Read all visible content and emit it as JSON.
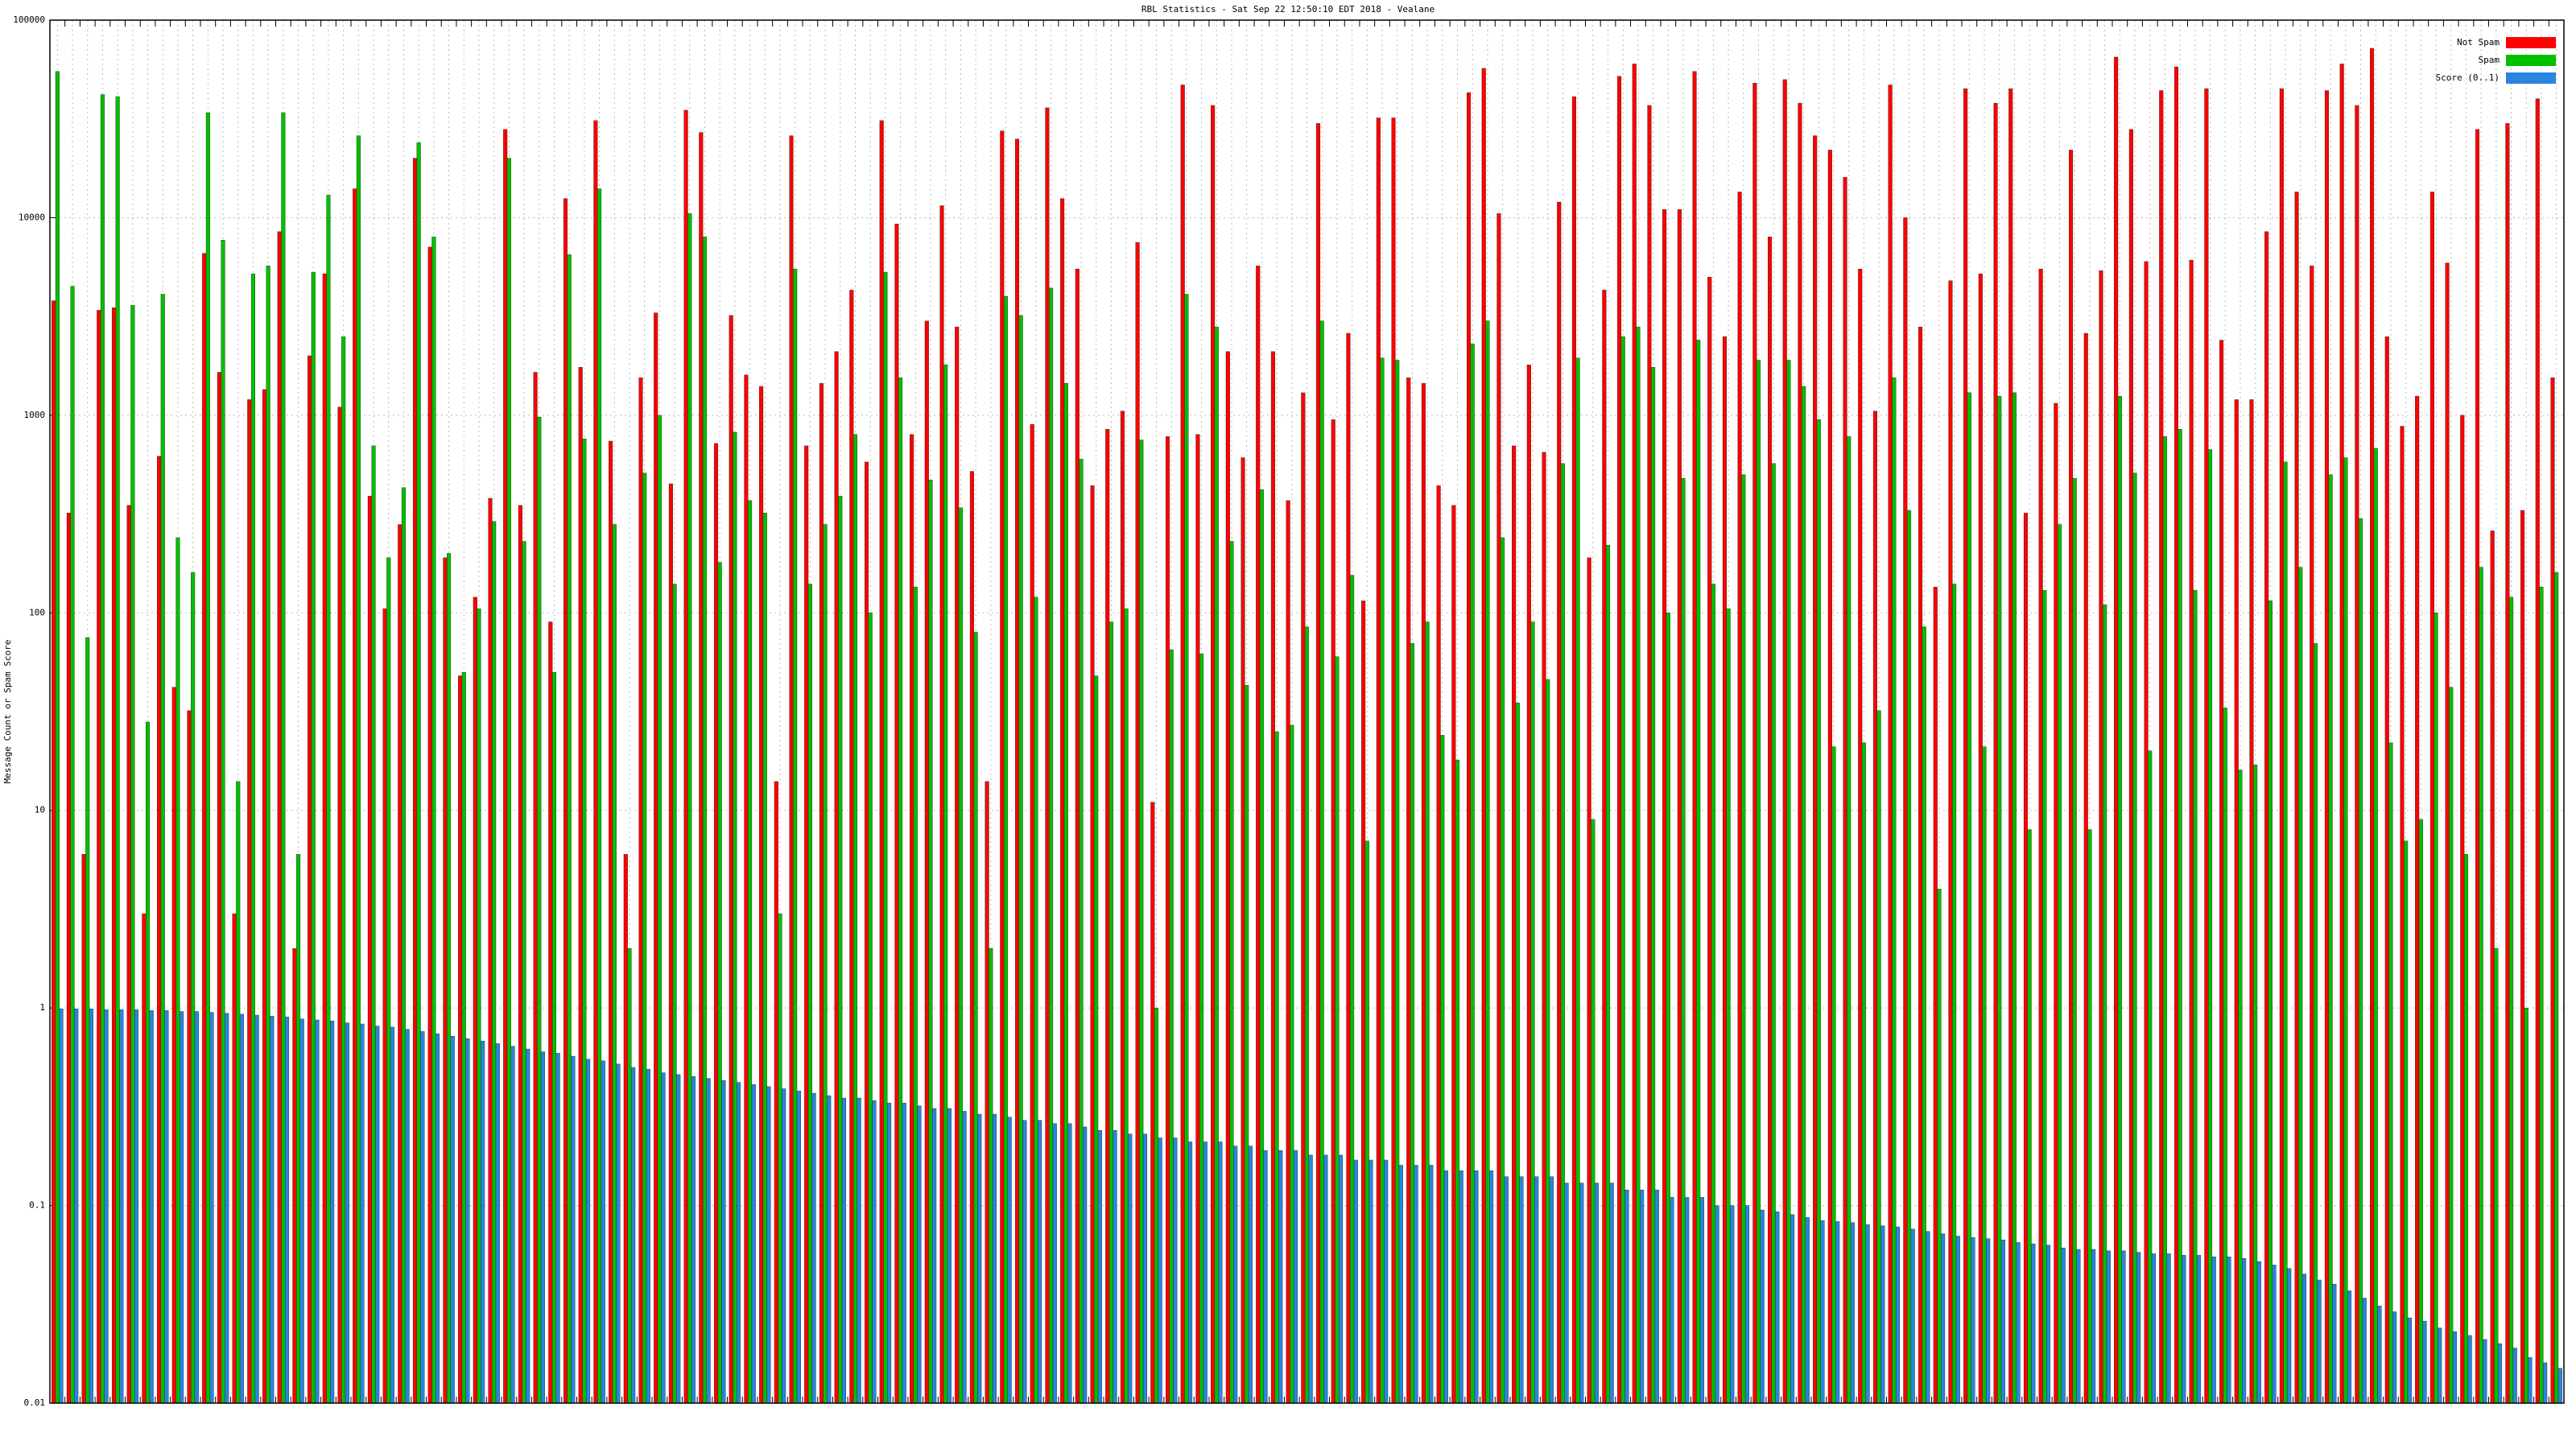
{
  "chart_data": {
    "type": "bar",
    "title": "RBL Statistics - Sat Sep 22 12:50:10 EDT 2018 - Vealane",
    "y_label": "Message Count or Spam Score",
    "log_scale": true,
    "grid": true,
    "legend": "upper-right",
    "ylim": [
      0.01,
      100000
    ],
    "yticks": [
      0.01,
      0.1,
      1,
      10,
      100,
      1000,
      10000,
      100000
    ],
    "series": [
      {
        "name": "Not Spam",
        "color": "#ff0000",
        "values": [
          3800,
          320,
          6,
          3400,
          3500,
          350,
          3,
          620,
          42,
          32,
          6600,
          1650,
          3,
          1200,
          1350,
          8500,
          2,
          2000,
          5200,
          1100,
          14000,
          390,
          105,
          280,
          20000,
          7100,
          190,
          48,
          120,
          380,
          28000,
          350,
          1650,
          90,
          12500,
          1750,
          31000,
          740,
          6,
          1550,
          3300,
          450,
          35000,
          27000,
          720,
          3200,
          1600,
          1400,
          14,
          26000,
          700,
          1450,
          2100,
          4300,
          580,
          31000,
          9300,
          800,
          3000,
          11500,
          2800,
          520,
          14,
          27500,
          25000,
          900,
          36000,
          12500,
          5500,
          440,
          850,
          1050,
          7500,
          11,
          780,
          47000,
          800,
          37000,
          2100,
          610,
          5700,
          2100,
          370,
          1300,
          30000,
          950,
          2600,
          115,
          32000,
          32000,
          1550,
          1450,
          440,
          350,
          43000,
          57000,
          10500,
          700,
          1800,
          650,
          12000,
          41000,
          190,
          4300,
          52000,
          60000,
          37000,
          11000,
          11000,
          55000,
          5000,
          2500,
          13500,
          48000,
          8000,
          50000,
          38000,
          26000,
          22000,
          16000,
          5500,
          1050,
          47000,
          10000,
          2800,
          135,
          4800,
          45000,
          5200,
          38000,
          45000,
          320,
          5500,
          1150,
          22000,
          2600,
          5400,
          65000,
          28000,
          6000,
          44000,
          58000,
          6100,
          45000,
          2400,
          1200,
          1200,
          8500,
          45000,
          13500,
          5700,
          44000,
          60000,
          37000,
          72000,
          2500,
          880,
          1250,
          13500,
          5900,
          1000,
          28000,
          260,
          30000,
          330,
          40000,
          1550
        ]
      },
      {
        "name": "Spam",
        "color": "#00c000",
        "values": [
          55000,
          4500,
          75,
          42000,
          41000,
          3600,
          28,
          4100,
          240,
          160,
          34000,
          7700,
          14,
          5200,
          5700,
          34000,
          6,
          5300,
          13000,
          2500,
          26000,
          700,
          190,
          430,
          24000,
          8000,
          200,
          50,
          105,
          290,
          20000,
          230,
          980,
          50,
          6500,
          760,
          14000,
          280,
          2,
          510,
          1000,
          140,
          10500,
          8000,
          180,
          820,
          370,
          320,
          3,
          5500,
          140,
          280,
          390,
          800,
          100,
          5300,
          1550,
          135,
          470,
          1800,
          340,
          80,
          2,
          4000,
          3200,
          120,
          4400,
          1450,
          600,
          48,
          90,
          105,
          750,
          1,
          65,
          4100,
          62,
          2800,
          230,
          43,
          420,
          25,
          27,
          85,
          3000,
          60,
          155,
          7,
          1950,
          1900,
          70,
          90,
          24,
          18,
          2300,
          3000,
          240,
          35,
          90,
          46,
          570,
          1950,
          9,
          220,
          2500,
          2800,
          1750,
          100,
          480,
          2400,
          140,
          105,
          500,
          1900,
          570,
          1900,
          1400,
          950,
          21,
          780,
          22,
          32,
          1550,
          330,
          85,
          4,
          140,
          1300,
          21,
          1250,
          1300,
          8,
          130,
          280,
          480,
          8,
          110,
          1250,
          510,
          20,
          780,
          850,
          130,
          670,
          33,
          16,
          17,
          115,
          580,
          170,
          70,
          500,
          610,
          300,
          680,
          22,
          7,
          9,
          100,
          42,
          6,
          170,
          2,
          120,
          1,
          135,
          160
        ]
      },
      {
        "name": "Score (0..1)",
        "color": "#2a84e0",
        "values": [
          0.99,
          0.99,
          0.99,
          0.98,
          0.98,
          0.98,
          0.97,
          0.97,
          0.96,
          0.96,
          0.95,
          0.94,
          0.93,
          0.92,
          0.91,
          0.9,
          0.88,
          0.87,
          0.86,
          0.84,
          0.83,
          0.81,
          0.8,
          0.78,
          0.76,
          0.74,
          0.72,
          0.7,
          0.68,
          0.66,
          0.64,
          0.62,
          0.6,
          0.59,
          0.57,
          0.55,
          0.54,
          0.52,
          0.5,
          0.49,
          0.47,
          0.46,
          0.45,
          0.44,
          0.43,
          0.42,
          0.41,
          0.4,
          0.39,
          0.38,
          0.37,
          0.36,
          0.35,
          0.35,
          0.34,
          0.33,
          0.33,
          0.32,
          0.31,
          0.31,
          0.3,
          0.29,
          0.29,
          0.28,
          0.27,
          0.27,
          0.26,
          0.26,
          0.25,
          0.24,
          0.24,
          0.23,
          0.23,
          0.22,
          0.22,
          0.21,
          0.21,
          0.21,
          0.2,
          0.2,
          0.19,
          0.19,
          0.19,
          0.18,
          0.18,
          0.18,
          0.17,
          0.17,
          0.17,
          0.16,
          0.16,
          0.16,
          0.15,
          0.15,
          0.15,
          0.15,
          0.14,
          0.14,
          0.14,
          0.14,
          0.13,
          0.13,
          0.13,
          0.13,
          0.12,
          0.12,
          0.12,
          0.11,
          0.11,
          0.11,
          0.1,
          0.1,
          0.1,
          0.095,
          0.093,
          0.09,
          0.087,
          0.084,
          0.083,
          0.082,
          0.08,
          0.079,
          0.078,
          0.076,
          0.074,
          0.072,
          0.07,
          0.069,
          0.068,
          0.067,
          0.065,
          0.064,
          0.063,
          0.061,
          0.06,
          0.06,
          0.059,
          0.059,
          0.058,
          0.057,
          0.057,
          0.056,
          0.056,
          0.055,
          0.055,
          0.054,
          0.052,
          0.05,
          0.048,
          0.045,
          0.042,
          0.04,
          0.037,
          0.034,
          0.031,
          0.029,
          0.027,
          0.026,
          0.024,
          0.023,
          0.022,
          0.021,
          0.02,
          0.019,
          0.017,
          0.016,
          0.015
        ]
      }
    ]
  }
}
